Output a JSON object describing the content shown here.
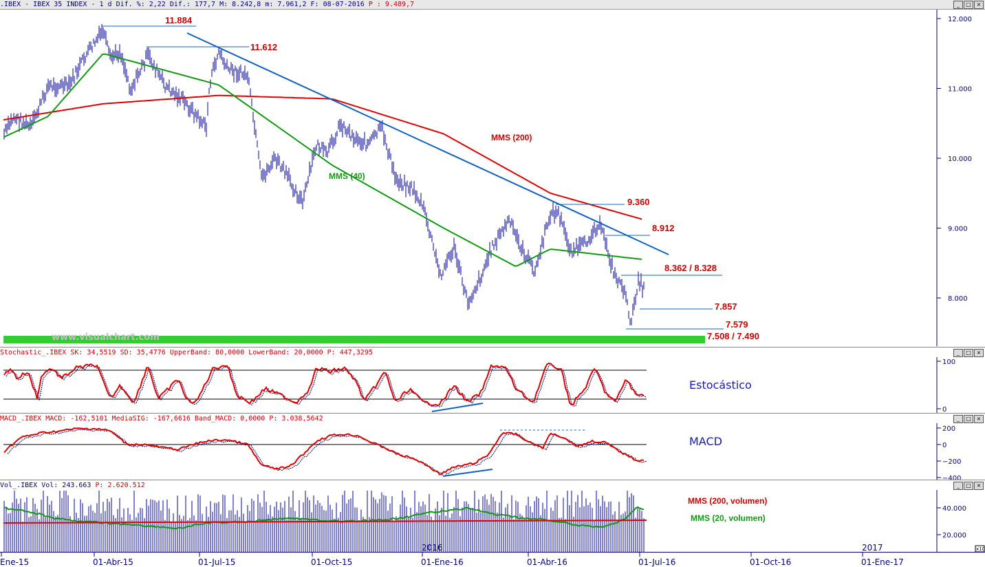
{
  "header": {
    "symbol_line": ".IBEX - IBEX 35 INDEX -  1 d Dif. %: 2,22 Dif.: 177,7 M: 8.242,8 m: 7.961,2 F: 08-07-2016",
    "prev_label": "P : 9.489,7"
  },
  "stoch_header": {
    "text": "Stochastic_.IBEX SK: 34,5519 SD: 35,4776 UpperBand: 80,0000 LowerBand: 20,0000",
    "p": "P: 447,3295"
  },
  "macd_header": {
    "text": "MACD_.IBEX MACD: -162,5101 MediaSIG: -167,6616 Band_MACD: 0,0000",
    "p": "P: 3.038,5642"
  },
  "vol_header": {
    "text": "Vol_.IBEX Vol: 243.663",
    "p": "P: 2.620.512"
  },
  "watermark": "www.visualchart.com",
  "annotations": {
    "mms200": "MMS (200)",
    "mms40": "MMS (40)",
    "level_11884": "11.884",
    "level_11612": "11.612",
    "level_9360": "9.360",
    "level_8912": "8.912",
    "level_8362": "8.362 / 8.328",
    "level_7857": "7.857",
    "level_7579": "7.579",
    "level_7508": "7.508 / 7.490",
    "estocastico": "Estocástico",
    "macd": "MACD",
    "vol_mms200": "MMS (200, volumen)",
    "vol_mms20": "MMS (20, volumen)",
    "year_2016": "2016",
    "year_2017": "2017",
    "x10": "x10"
  },
  "colors": {
    "axis_text": "#000080",
    "price_bars": "#000099",
    "mms200": "#dd0000",
    "mms40": "#119911",
    "trend": "#1060c0",
    "green_band": "#33cc33",
    "ann_red": "#cc0000"
  },
  "chart_data": [
    {
      "type": "line",
      "title": "",
      "series": [
        {
          "name": "MMS (200)",
          "x": [
            "01-Ene-15",
            "01-Abr-15",
            "01-Jul-15",
            "01-Oct-15",
            "01-Ene-16",
            "01-Abr-16",
            "15-Jun-16"
          ],
          "values": [
            10550,
            10780,
            10900,
            10850,
            10350,
            9500,
            9120
          ]
        },
        {
          "name": "MMS (40)",
          "x": [
            "01-Ene-15",
            "01-Feb-15",
            "01-Abr-15",
            "01-Jul-15",
            "01-Oct-15",
            "01-Ene-16",
            "01-Mar-16",
            "01-Abr-16",
            "15-Jun-16"
          ],
          "values": [
            10300,
            10600,
            11500,
            11050,
            9900,
            9000,
            8450,
            8700,
            8550
          ]
        }
      ],
      "levels": [
        11884,
        11612,
        9360,
        8912,
        8362,
        8328,
        7857,
        7579,
        7508,
        7490
      ],
      "ylim": [
        7300,
        12100
      ],
      "yticks": [
        "8.000",
        "9.000",
        "10.000",
        "11.000",
        "12.000"
      ],
      "xticks": [
        "Ene-15",
        "01-Abr-15",
        "01-Jul-15",
        "01-Oct-15",
        "01-Ene-16",
        "01-Abr-16",
        "01-Jul-16",
        "01-Oct-16",
        "01-Ene-17"
      ]
    },
    {
      "type": "line",
      "series": [
        {
          "name": "SK",
          "last": 34.5519
        },
        {
          "name": "SD",
          "last": 35.4776
        }
      ],
      "upper_band": 80,
      "lower_band": 20,
      "ylim": [
        0,
        100
      ],
      "yticks": [
        "0",
        "100"
      ]
    },
    {
      "type": "line",
      "series": [
        {
          "name": "MACD",
          "last": -162.5101
        },
        {
          "name": "MediaSIG",
          "last": -167.6616
        }
      ],
      "band": 0,
      "ylim": [
        -400,
        200
      ],
      "yticks": [
        "−400",
        "−200",
        "0",
        "200"
      ]
    },
    {
      "type": "bar",
      "series": [
        {
          "name": "Vol",
          "last": 243663
        },
        {
          "name": "MMS (200, volumen)"
        },
        {
          "name": "MMS (20, volumen)"
        }
      ],
      "yticks": [
        "20.000",
        "40.000"
      ]
    }
  ]
}
